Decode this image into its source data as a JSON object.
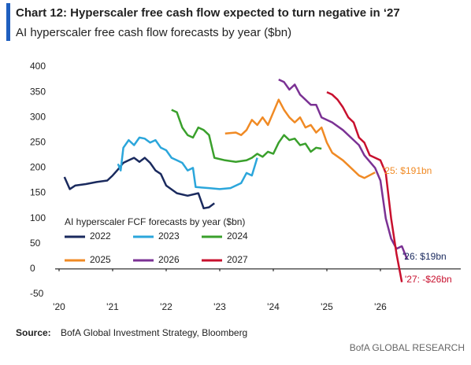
{
  "chart_data": {
    "type": "line",
    "title": "Chart 12: Hyperscaler free cash flow expected to turn negative in ‘27",
    "subtitle": "AI hyperscaler free cash flow forecasts by year ($bn)",
    "legend_title": "AI hyperscaler FCF forecasts by year ($bn)",
    "source_label": "Source:",
    "source": "BofA Global Investment Strategy, Bloomberg",
    "branding": "BofA GLOBAL RESEARCH",
    "annotations": [
      "'25: $191bn",
      "'26: $19bn",
      "'27: -$26bn"
    ],
    "xlim": [
      2020,
      2027.5
    ],
    "xticks": [
      {
        "value": 2020,
        "label": "'20"
      },
      {
        "value": 2021,
        "label": "'21"
      },
      {
        "value": 2022,
        "label": "'22"
      },
      {
        "value": 2023,
        "label": "'23"
      },
      {
        "value": 2024,
        "label": "'24"
      },
      {
        "value": 2025,
        "label": "'25"
      },
      {
        "value": 2026,
        "label": "'26"
      }
    ],
    "ylim": [
      -50,
      400
    ],
    "yticks": [
      -50,
      0,
      50,
      100,
      150,
      200,
      250,
      300,
      350,
      400
    ],
    "series": [
      {
        "name": "2022",
        "color": "#1a2a5e",
        "x": [
          2020.1,
          2020.2,
          2020.3,
          2020.5,
          2020.7,
          2020.9,
          2021.0,
          2021.1,
          2021.2,
          2021.3,
          2021.4,
          2021.5,
          2021.6,
          2021.7,
          2021.8,
          2021.9,
          2022.0,
          2022.2,
          2022.4,
          2022.6,
          2022.7,
          2022.8,
          2022.9
        ],
        "values": [
          182,
          158,
          165,
          168,
          172,
          175,
          185,
          197,
          210,
          215,
          220,
          212,
          220,
          210,
          195,
          188,
          165,
          150,
          145,
          150,
          120,
          122,
          130
        ]
      },
      {
        "name": "2023",
        "color": "#2ba6db",
        "x": [
          2021.1,
          2021.15,
          2021.2,
          2021.3,
          2021.4,
          2021.5,
          2021.6,
          2021.7,
          2021.8,
          2021.9,
          2022.0,
          2022.1,
          2022.2,
          2022.3,
          2022.4,
          2022.5,
          2022.55,
          2022.8,
          2023.0,
          2023.2,
          2023.4,
          2023.5,
          2023.6,
          2023.7
        ],
        "values": [
          208,
          195,
          240,
          255,
          245,
          260,
          258,
          250,
          255,
          240,
          235,
          220,
          215,
          210,
          195,
          200,
          162,
          160,
          158,
          160,
          170,
          190,
          185,
          220
        ]
      },
      {
        "name": "2024",
        "color": "#3aa02c",
        "x": [
          2022.1,
          2022.2,
          2022.3,
          2022.4,
          2022.5,
          2022.6,
          2022.7,
          2022.8,
          2022.9,
          2023.1,
          2023.3,
          2023.5,
          2023.6,
          2023.7,
          2023.8,
          2023.9,
          2024.0,
          2024.1,
          2024.2,
          2024.3,
          2024.4,
          2024.5,
          2024.6,
          2024.7,
          2024.8,
          2024.9
        ],
        "values": [
          315,
          310,
          280,
          265,
          260,
          280,
          275,
          265,
          220,
          215,
          212,
          215,
          220,
          228,
          222,
          232,
          228,
          250,
          265,
          255,
          258,
          245,
          248,
          232,
          240,
          238
        ]
      },
      {
        "name": "2025",
        "color": "#f08a24",
        "x": [
          2023.1,
          2023.3,
          2023.4,
          2023.5,
          2023.6,
          2023.7,
          2023.8,
          2023.9,
          2024.0,
          2024.1,
          2024.2,
          2024.3,
          2024.4,
          2024.5,
          2024.6,
          2024.7,
          2024.8,
          2024.9,
          2025.0,
          2025.1,
          2025.3,
          2025.4,
          2025.6,
          2025.7,
          2025.9
        ],
        "values": [
          268,
          270,
          265,
          275,
          295,
          285,
          300,
          285,
          310,
          335,
          315,
          300,
          290,
          300,
          280,
          285,
          270,
          280,
          250,
          230,
          215,
          205,
          185,
          180,
          191
        ]
      },
      {
        "name": "2026",
        "color": "#7b3294",
        "x": [
          2024.1,
          2024.2,
          2024.3,
          2024.4,
          2024.5,
          2024.6,
          2024.7,
          2024.8,
          2024.9,
          2025.1,
          2025.3,
          2025.5,
          2025.6,
          2025.7,
          2025.9,
          2026.0,
          2026.1,
          2026.2,
          2026.3,
          2026.4,
          2026.5
        ],
        "values": [
          375,
          370,
          355,
          365,
          345,
          335,
          325,
          325,
          300,
          290,
          275,
          255,
          245,
          225,
          200,
          175,
          100,
          60,
          40,
          45,
          19
        ]
      },
      {
        "name": "2027",
        "color": "#c8102e",
        "x": [
          2025.0,
          2025.1,
          2025.2,
          2025.3,
          2025.4,
          2025.5,
          2025.6,
          2025.7,
          2025.8,
          2026.0,
          2026.1,
          2026.2,
          2026.3,
          2026.4
        ],
        "values": [
          350,
          345,
          335,
          320,
          300,
          290,
          260,
          250,
          225,
          215,
          190,
          100,
          30,
          -26
        ]
      }
    ]
  }
}
